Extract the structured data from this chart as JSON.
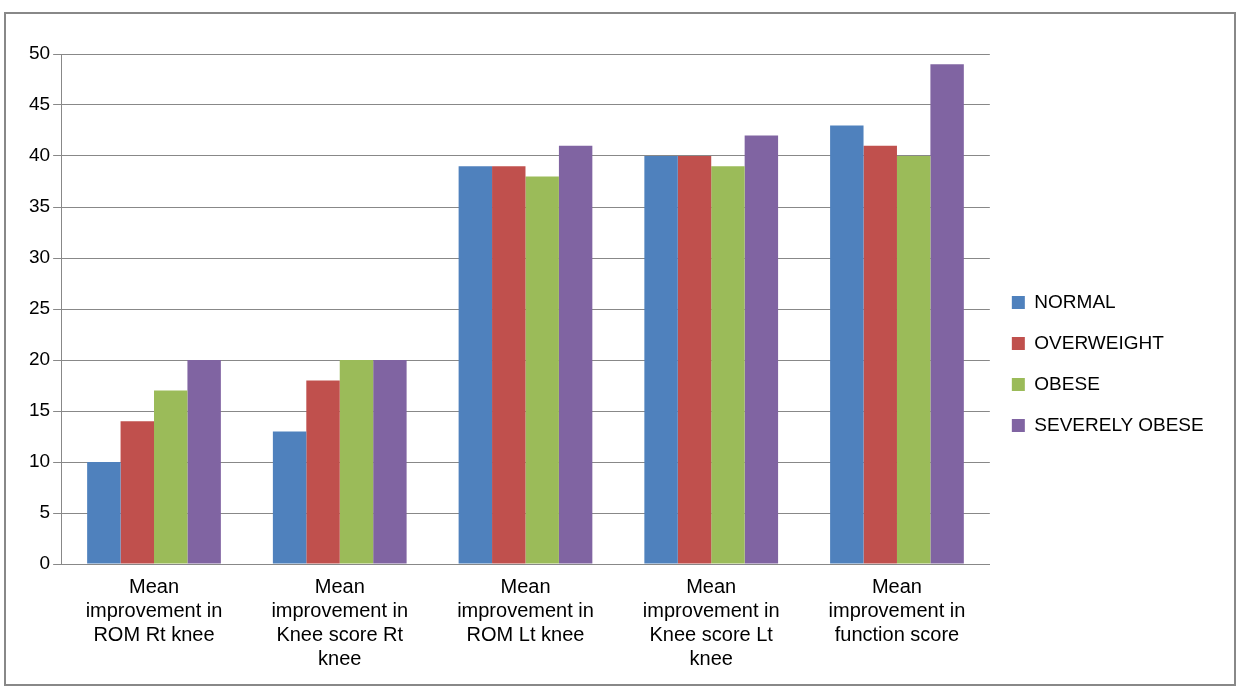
{
  "chart_data": {
    "type": "bar",
    "categories": [
      "Mean improvement in ROM Rt knee",
      "Mean improvement in Knee score Rt knee",
      "Mean improvement in ROM Lt knee",
      "Mean improvement in Knee score Lt knee",
      "Mean improvement in function score"
    ],
    "series": [
      {
        "name": "NORMAL",
        "color": "#4f81bd",
        "values": [
          10,
          13,
          39,
          40,
          43
        ]
      },
      {
        "name": "OVERWEIGHT",
        "color": "#c0504d",
        "values": [
          14,
          18,
          39,
          40,
          41
        ]
      },
      {
        "name": "OBESE",
        "color": "#9bbb59",
        "values": [
          17,
          20,
          38,
          39,
          40
        ]
      },
      {
        "name": "SEVERELY OBESE",
        "color": "#8064a2",
        "values": [
          20,
          20,
          41,
          42,
          49
        ]
      }
    ],
    "ylim": [
      0,
      50
    ],
    "yticks": [
      0,
      5,
      10,
      15,
      20,
      25,
      30,
      35,
      40,
      45,
      50
    ],
    "grid": "y",
    "legend": "right"
  }
}
